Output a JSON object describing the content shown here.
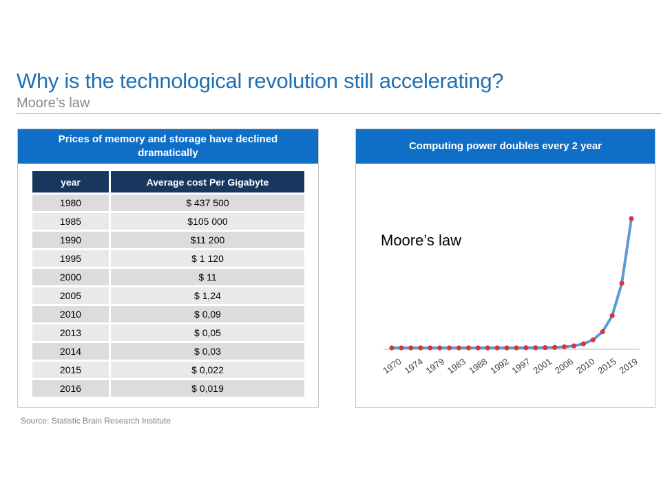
{
  "header": {
    "title": "Why is the technological revolution still accelerating?",
    "subtitle": "Moore’s law"
  },
  "left_panel": {
    "heading": "Prices of memory and storage have declined dramatically",
    "table": {
      "columns": [
        "year",
        "Average cost Per Gigabyte"
      ],
      "rows": [
        [
          "1980",
          "$ 437 500"
        ],
        [
          "1985",
          "$105 000"
        ],
        [
          "1990",
          "$11 200"
        ],
        [
          "1995",
          "$ 1 120"
        ],
        [
          "2000",
          "$  11"
        ],
        [
          "2005",
          "$  1,24"
        ],
        [
          "2010",
          "$  0,09"
        ],
        [
          "2013",
          "$  0,05"
        ],
        [
          "2014",
          "$ 0,03"
        ],
        [
          "2015",
          "$  0,022"
        ],
        [
          "2016",
          "$  0,019"
        ]
      ]
    }
  },
  "right_panel": {
    "heading": "Computing power doubles every 2 year"
  },
  "source": "Source: Statistic Brain Research Institute",
  "colors": {
    "title_blue": "#1e6fb3",
    "panel_header_blue": "#0f6fc6",
    "table_header_navy": "#17375e",
    "line_blue": "#5b9bd5",
    "marker_red": "#d9343a"
  },
  "chart_data": {
    "type": "line",
    "annotation": "Moore’s law",
    "x_tick_labels": [
      "1970",
      "1974",
      "1979",
      "1983",
      "1988",
      "1992",
      "1997",
      "2001",
      "2006",
      "2010",
      "2015",
      "2019"
    ],
    "x": [
      1970,
      1972,
      1974,
      1976,
      1978,
      1980,
      1982,
      1984,
      1986,
      1988,
      1990,
      1992,
      1994,
      1996,
      1998,
      2000,
      2002,
      2004,
      2006,
      2008,
      2010,
      2012,
      2014,
      2016,
      2018,
      2020
    ],
    "y": [
      0,
      0,
      0,
      0,
      0,
      0,
      0,
      0,
      0,
      0,
      0,
      0,
      0,
      0,
      0.01,
      0.01,
      0.02,
      0.04,
      0.08,
      0.16,
      0.32,
      0.64,
      1.28,
      2.56,
      5.12,
      10.24
    ],
    "ylim": [
      0,
      11
    ],
    "grid": false,
    "legend": "none"
  }
}
